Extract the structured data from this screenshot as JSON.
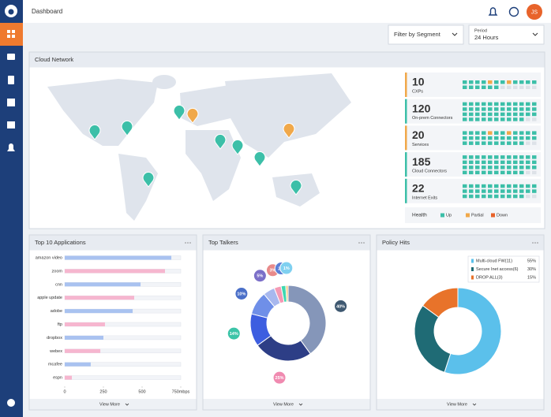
{
  "header": {
    "title": "Dashboard",
    "avatar": "JS"
  },
  "filters": {
    "segment": "Filter by Segment",
    "period_label": "Period",
    "period": "24 Hours"
  },
  "cloud_network": {
    "title": "Cloud Network",
    "stats": [
      {
        "value": 10,
        "label": "CXPs",
        "color": "#f0a84a"
      },
      {
        "value": 120,
        "label": "On-prem Connectors",
        "color": "#3cbfa8"
      },
      {
        "value": 20,
        "label": "Services",
        "color": "#f0a84a"
      },
      {
        "value": 185,
        "label": "Cloud Connectors",
        "color": "#3cbfa8"
      },
      {
        "value": 22,
        "label": "Internet Exits",
        "color": "#3cbfa8"
      }
    ],
    "health": {
      "title": "Health",
      "legend": [
        {
          "name": "Up",
          "color": "#3cbfa8"
        },
        {
          "name": "Partial",
          "color": "#f0a84a"
        },
        {
          "name": "Down",
          "color": "#e8632a"
        }
      ]
    }
  },
  "chart_data": [
    {
      "type": "bar",
      "horizontal": true,
      "title": "Top 10 Applications",
      "categories": [
        "amazon video",
        "zoom",
        "cnn",
        "apple update",
        "adobe",
        "ftp",
        "dropbox",
        "webex",
        "mcafee",
        "espn"
      ],
      "values": [
        689,
        648,
        490,
        449,
        439,
        260,
        250,
        230,
        168,
        46
      ],
      "colors": [
        "#a9c2f0",
        "#f6b6cf",
        "#a9c2f0",
        "#f6b6cf",
        "#a9c2f0",
        "#f6b6cf",
        "#a9c2f0",
        "#f6b6cf",
        "#a9c2f0",
        "#f6b6cf"
      ],
      "xlim": [
        0,
        750
      ],
      "xticks": [
        0,
        250,
        500,
        {
          "value": 750,
          "label": "750mbps"
        }
      ],
      "footer": "View More"
    },
    {
      "type": "donut",
      "title": "Top Talkers",
      "values": [
        40,
        25,
        14,
        10,
        5,
        3,
        2,
        1
      ],
      "value_labels": [
        "40%",
        "25%",
        "14%",
        "10%",
        "5%",
        "3%",
        "2%",
        "1%"
      ],
      "colors": [
        "#8596b9",
        "#2d3e86",
        "#3d5ee0",
        "#6f8fe8",
        "#a8b8ee",
        "#f49ab4",
        "#3ed8b0",
        "#f4c97a"
      ],
      "label_colors": [
        "#3e5870",
        "#f08ab0",
        "#3cc4a8",
        "#4a6fc8",
        "#7b6fc8",
        "#e88a8a",
        "#5a7ed6",
        "#7fd0f0"
      ],
      "footer": "View More"
    },
    {
      "type": "donut",
      "title": "Policy Hits",
      "legend": true,
      "categories": [
        "Multi-cloud FW(11)",
        "Secure Inet access(6)",
        "DROP ALL(3)"
      ],
      "values": [
        55,
        30,
        15
      ],
      "value_labels": [
        "55%",
        "30%",
        "15%"
      ],
      "colors": [
        "#5bc0eb",
        "#1f6b75",
        "#e8732a"
      ],
      "footer": "View More"
    }
  ]
}
